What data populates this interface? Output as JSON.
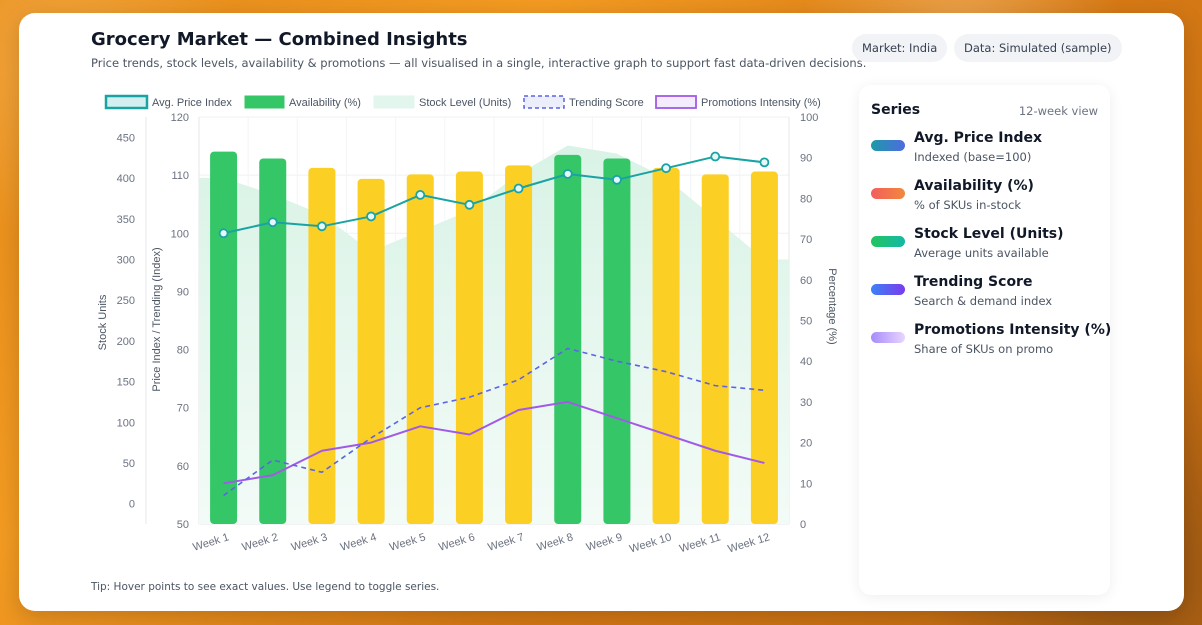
{
  "header": {
    "title": "Grocery Market — Combined Insights",
    "subtitle": "Price trends, stock levels, availability & promotions — all visualised in a single, interactive graph to support fast data-driven decisions.",
    "market_pill": "Market: India",
    "data_pill": "Data: Simulated (sample)"
  },
  "tip": "Tip: Hover points to see exact values. Use legend to toggle series.",
  "sidebar": {
    "title": "Series",
    "view": "12-week view",
    "items": [
      {
        "name": "Avg. Price Index",
        "desc": "Indexed (base=100)",
        "color_from": "#1c9aa8",
        "color_to": "#4f6be0"
      },
      {
        "name": "Availability (%)",
        "desc": "% of SKUs in-stock",
        "color_from": "#f25f5c",
        "color_to": "#f2883e"
      },
      {
        "name": "Stock Level (Units)",
        "desc": "Average units available",
        "color_from": "#22c55e",
        "color_to": "#14b8a6"
      },
      {
        "name": "Trending Score",
        "desc": "Search & demand index",
        "color_from": "#3b82f6",
        "color_to": "#7c3aed"
      },
      {
        "name": "Promotions Intensity (%)",
        "desc": "Share of SKUs on promo",
        "color_from": "#a78bfa",
        "color_to": "#e9d5ff"
      }
    ]
  },
  "chart_data": {
    "type": "bar",
    "categories": [
      "Week 1",
      "Week 2",
      "Week 3",
      "Week 4",
      "Week 5",
      "Week 6",
      "Week 7",
      "Week 8",
      "Week 9",
      "Week 10",
      "Week 11",
      "Week 12"
    ],
    "legend": [
      "Avg. Price Index",
      "Availability (%)",
      "Stock Level (Units)",
      "Trending Score",
      "Promotions Intensity (%)"
    ],
    "axes": {
      "stock": {
        "label": "Stock Units",
        "ticks": [
          0,
          50,
          100,
          150,
          200,
          250,
          300,
          350,
          400,
          450
        ],
        "range": [
          -25,
          475
        ]
      },
      "index": {
        "label": "Price Index / Trending (Index)",
        "ticks": [
          50,
          60,
          70,
          80,
          90,
          100,
          110,
          120
        ],
        "range": [
          50,
          120
        ]
      },
      "percent": {
        "label": "Percentage (%)",
        "ticks": [
          0,
          10,
          20,
          30,
          40,
          50,
          60,
          70,
          80,
          90,
          100
        ],
        "range": [
          0,
          100
        ]
      }
    },
    "series": [
      {
        "name": "Availability (%)",
        "chart": "bar",
        "axis": "percent",
        "values": [
          91.5,
          89.8,
          87.5,
          84.8,
          85.9,
          86.6,
          88.1,
          90.7,
          89.8,
          87.5,
          85.9,
          86.6
        ],
        "bar_colors": [
          "#35c767",
          "#35c767",
          "#fbcf24",
          "#fbcf24",
          "#fbcf24",
          "#fbcf24",
          "#fbcf24",
          "#35c767",
          "#35c767",
          "#fbcf24",
          "#fbcf24",
          "#fbcf24"
        ]
      },
      {
        "name": "Stock Level (Units)",
        "chart": "area",
        "axis": "stock",
        "values": [
          400,
          380,
          355,
          310,
          335,
          360,
          405,
          440,
          430,
          400,
          350,
          300
        ]
      },
      {
        "name": "Avg. Price Index",
        "chart": "line",
        "axis": "index",
        "values": [
          100,
          101.9,
          101.2,
          102.9,
          106.6,
          104.9,
          107.7,
          110.2,
          109.2,
          111.2,
          113.2,
          112.2
        ]
      },
      {
        "name": "Trending Score",
        "chart": "line",
        "axis": "index",
        "dashed": true,
        "values": [
          54.9,
          61.0,
          58.9,
          64.8,
          70.0,
          71.8,
          74.8,
          80.2,
          78.0,
          76.2,
          73.8,
          73.0
        ]
      },
      {
        "name": "Promotions Intensity (%)",
        "chart": "line",
        "axis": "percent",
        "values": [
          10,
          12,
          18,
          20,
          24,
          22,
          28,
          30,
          26,
          22,
          18,
          15
        ]
      }
    ],
    "colors": {
      "price": "#1aa3a3",
      "trending": "#5b63e6",
      "promo": "#a15ae8",
      "stock_fill": "#e3f6ee",
      "availability_green": "#35c767",
      "availability_yellow": "#fbcf24"
    }
  }
}
